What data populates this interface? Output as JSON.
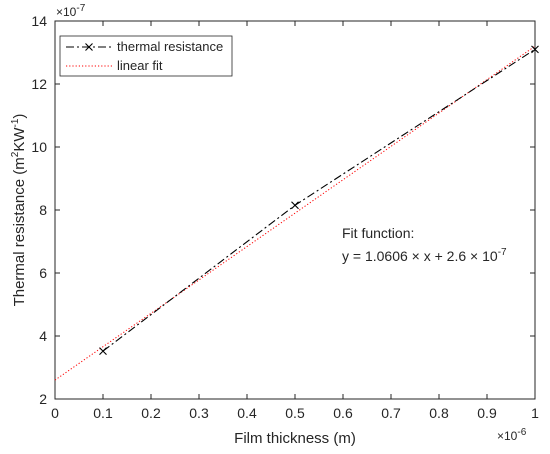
{
  "chart_data": {
    "type": "line",
    "xlabel": "Film thickness (m)",
    "ylabel_main": "Thermal resistance (m",
    "ylabel_sup2": "2",
    "ylabel_mid": "KW",
    "ylabel_supneg1": "-1",
    "ylabel_end": ")",
    "x_exponent_base": "×10",
    "x_exponent_power": "-6",
    "y_exponent_base": "×10",
    "y_exponent_power": "-7",
    "xlim": [
      0,
      1
    ],
    "ylim": [
      2,
      14
    ],
    "x_ticks": [
      0,
      0.1,
      0.2,
      0.3,
      0.4,
      0.5,
      0.6,
      0.7,
      0.8,
      0.9,
      1
    ],
    "x_tick_labels": [
      "0",
      "0.1",
      "0.2",
      "0.3",
      "0.4",
      "0.5",
      "0.6",
      "0.7",
      "0.8",
      "0.9",
      "1"
    ],
    "y_ticks": [
      2,
      4,
      6,
      8,
      10,
      12,
      14
    ],
    "y_tick_labels": [
      "2",
      "4",
      "6",
      "8",
      "10",
      "12",
      "14"
    ],
    "grid": false,
    "legend_position": "top-left",
    "series": [
      {
        "name": "thermal resistance",
        "style": "dash-dot with x markers",
        "color": "#000000",
        "x": [
          0.1,
          0.5,
          1.0
        ],
        "y": [
          3.52,
          8.15,
          13.1
        ]
      },
      {
        "name": "linear fit",
        "style": "dotted",
        "color": "#ff0000",
        "x": [
          0,
          1.0
        ],
        "y": [
          2.6,
          13.2
        ]
      }
    ],
    "annotation": {
      "line1": "Fit function:",
      "line2_prefix": "y = 1.0606 × x + 2.6 × 10",
      "line2_power": "-7"
    }
  }
}
